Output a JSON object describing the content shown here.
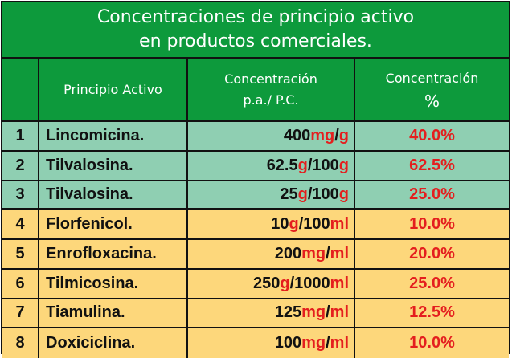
{
  "title": {
    "line1": "Concentraciones de principio activo",
    "line2": "en productos comerciales."
  },
  "header": {
    "col_num": "",
    "col_principio": "Principio Activo",
    "col_conc_line1": "Concentración",
    "col_conc_line2": "p.a./ P.C.",
    "col_pct_line1": "Concentración",
    "col_pct_line2": "%"
  },
  "rows": [
    {
      "num": "1",
      "name": "Lincomicina.",
      "amount": "400",
      "unit": "mg",
      "sep": "/",
      "base": "",
      "base_unit": "g",
      "pct": "40.0%"
    },
    {
      "num": "2",
      "name": "Tilvalosina.",
      "amount": "62.5",
      "unit": "g",
      "sep": "/",
      "base": "100",
      "base_unit": "g",
      "pct": "62.5%"
    },
    {
      "num": "3",
      "name": "Tilvalosina.",
      "amount": "25",
      "unit": "g",
      "sep": "/",
      "base": "100",
      "base_unit": "g",
      "pct": "25.0%"
    },
    {
      "num": "4",
      "name": "Florfenicol.",
      "amount": "10",
      "unit": "g",
      "sep": "/",
      "base": "100",
      "base_unit": "ml",
      "pct": "10.0%"
    },
    {
      "num": "5",
      "name": "Enrofloxacina.",
      "amount": "200",
      "unit": "mg",
      "sep": "/",
      "base": "",
      "base_unit": "ml",
      "pct": "20.0%"
    },
    {
      "num": "6",
      "name": "Tilmicosina.",
      "amount": "250",
      "unit": "g",
      "sep": "/",
      "base": "1000",
      "base_unit": "ml",
      "pct": "25.0%"
    },
    {
      "num": "7",
      "name": "Tiamulina.",
      "amount": "125",
      "unit": "mg",
      "sep": "/",
      "base": "",
      "base_unit": "ml",
      "pct": "12.5%"
    },
    {
      "num": "8",
      "name": "Doxiciclina.",
      "amount": "100",
      "unit": "mg",
      "sep": "/",
      "base": "",
      "base_unit": "ml",
      "pct": "10.0%"
    }
  ],
  "colors": {
    "header_green": "#0d9a3c",
    "row_green": "#8fcfb2",
    "row_yellow": "#fdd77b",
    "accent_red": "#e41e1e"
  }
}
